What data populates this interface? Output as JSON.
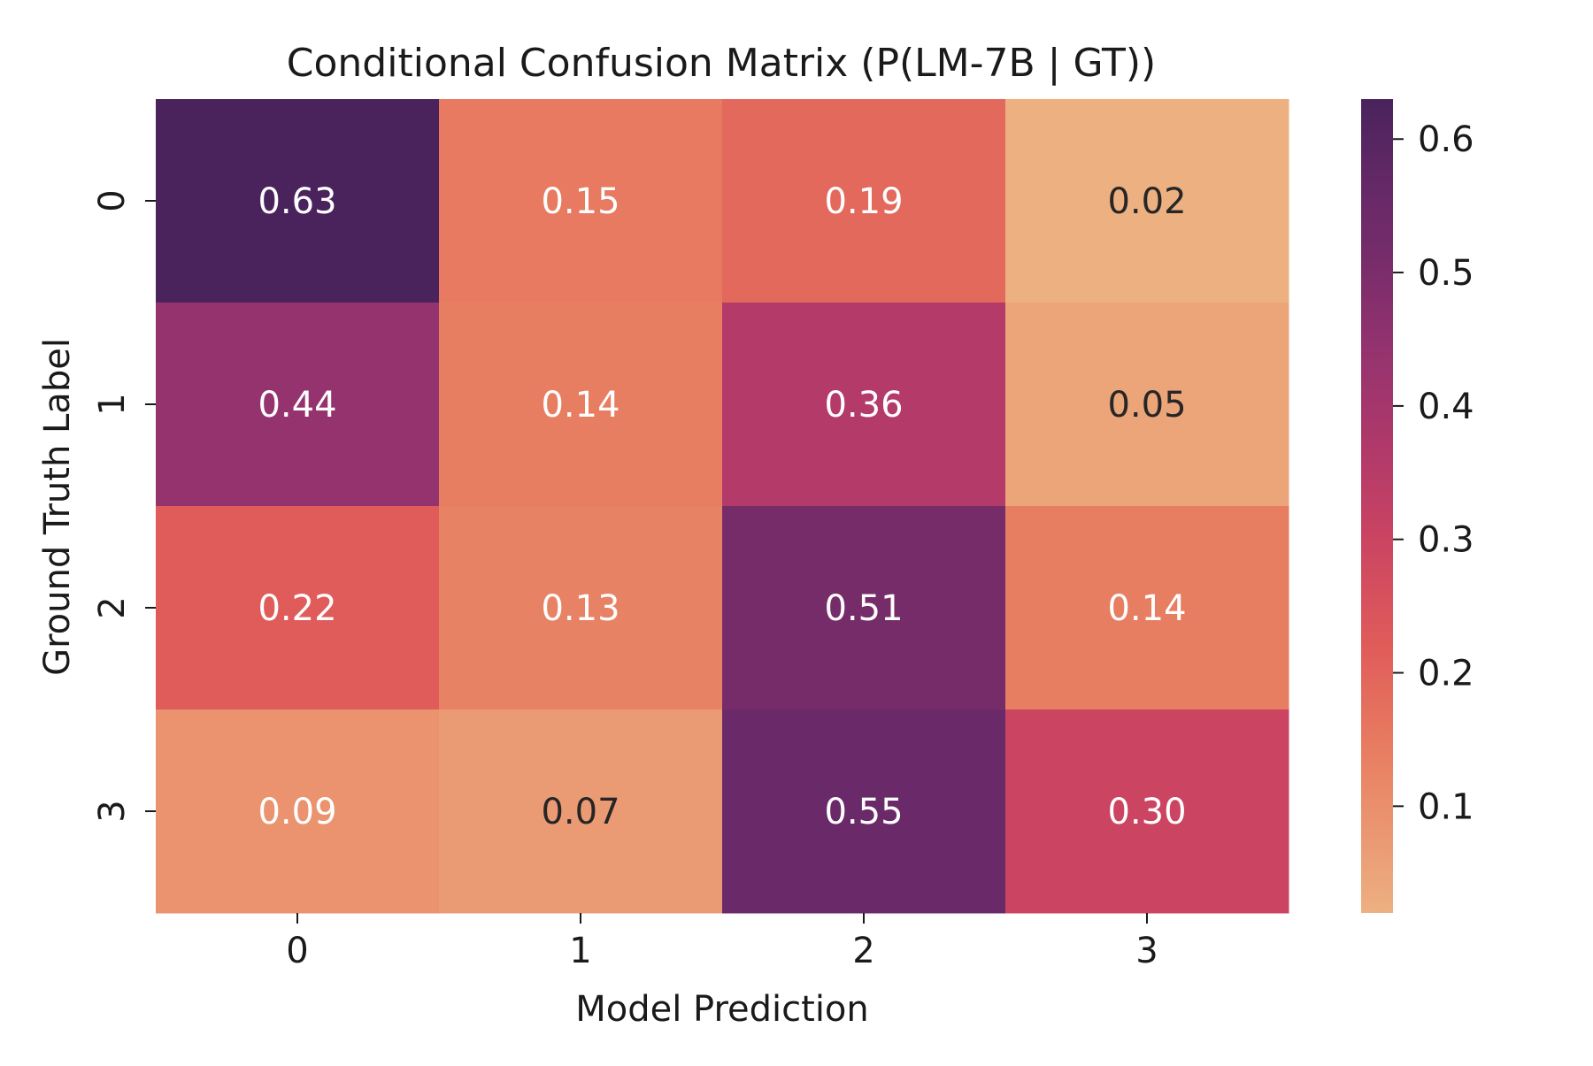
{
  "chart_data": {
    "type": "heatmap",
    "title": "Conditional Confusion Matrix (P(LM-7B | GT))",
    "xlabel": "Model Prediction",
    "ylabel": "Ground Truth Label",
    "x_categories": [
      "0",
      "1",
      "2",
      "3"
    ],
    "y_categories": [
      "0",
      "1",
      "2",
      "3"
    ],
    "values": [
      [
        0.63,
        0.15,
        0.19,
        0.02
      ],
      [
        0.44,
        0.14,
        0.36,
        0.05
      ],
      [
        0.22,
        0.13,
        0.51,
        0.14
      ],
      [
        0.09,
        0.07,
        0.55,
        0.3
      ]
    ],
    "cell_labels": [
      [
        "0.63",
        "0.15",
        "0.19",
        "0.02"
      ],
      [
        "0.44",
        "0.14",
        "0.36",
        "0.05"
      ],
      [
        "0.22",
        "0.13",
        "0.51",
        "0.14"
      ],
      [
        "0.09",
        "0.07",
        "0.55",
        "0.30"
      ]
    ],
    "colorscale": {
      "name": "flare",
      "vmin": 0.02,
      "vmax": 0.63,
      "ticks": [
        0.1,
        0.2,
        0.3,
        0.4,
        0.5,
        0.6
      ],
      "tick_labels": [
        "0.1",
        "0.2",
        "0.3",
        "0.4",
        "0.5",
        "0.6"
      ],
      "stops": [
        {
          "value": 0.02,
          "color": "#edb081"
        },
        {
          "value": 0.14,
          "color": "#e87e61"
        },
        {
          "value": 0.22,
          "color": "#e05c5a"
        },
        {
          "value": 0.3,
          "color": "#cb4462"
        },
        {
          "value": 0.36,
          "color": "#b33a69"
        },
        {
          "value": 0.44,
          "color": "#95336f"
        },
        {
          "value": 0.51,
          "color": "#772c6a"
        },
        {
          "value": 0.55,
          "color": "#6a2a69"
        },
        {
          "value": 0.63,
          "color": "#4a235c"
        }
      ]
    },
    "label_text_colors": {
      "dark": "#262626",
      "light": "#ffffff"
    },
    "legend": "colorbar-right",
    "grid": false
  }
}
